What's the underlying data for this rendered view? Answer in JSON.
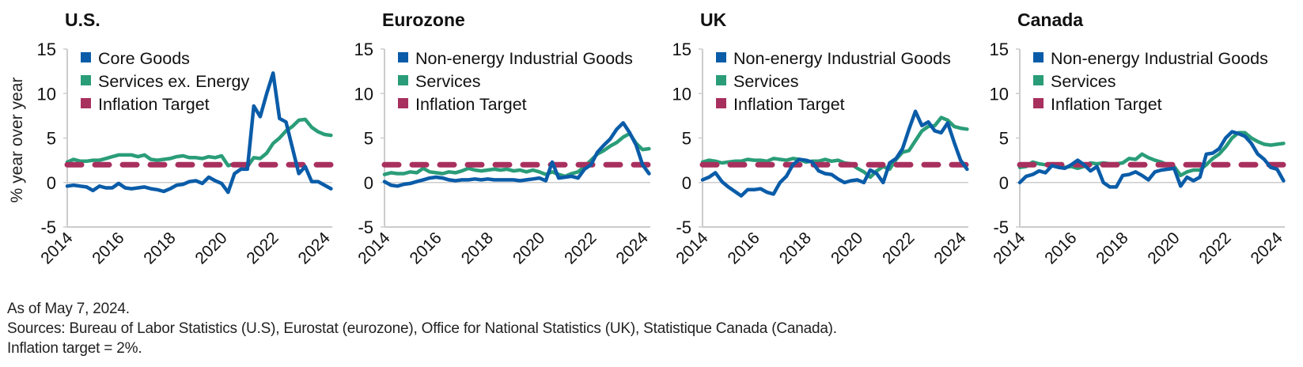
{
  "y_axis_label": "% year over year",
  "footer": {
    "as_of": "As of May 7, 2024.",
    "sources": "Sources: Bureau of Labor Statistics (U.S), Eurostat (eurozone), Office for National Statistics (UK), Statistique Canada (Canada).",
    "note": "Inflation target = 2%."
  },
  "colors": {
    "goods": "#0a5ca8",
    "services": "#2a9d78",
    "target": "#a8305e",
    "axis": "#cccccc",
    "text": "#111111"
  },
  "chart_data": [
    {
      "type": "line",
      "title": "U.S.",
      "xlabel": "",
      "ylabel": "% year over year",
      "x_ticks": [
        "2014",
        "2016",
        "2018",
        "2020",
        "2022",
        "2024"
      ],
      "y_ticks": [
        "15",
        "10",
        "5",
        "0",
        "-5"
      ],
      "xlim": [
        2014,
        2024.3
      ],
      "ylim": [
        -5,
        15
      ],
      "legend_position": "top-left",
      "x": [
        2014,
        2014.25,
        2014.5,
        2014.75,
        2015,
        2015.25,
        2015.5,
        2015.75,
        2016,
        2016.25,
        2016.5,
        2016.75,
        2017,
        2017.25,
        2017.5,
        2017.75,
        2018,
        2018.25,
        2018.5,
        2018.75,
        2019,
        2019.25,
        2019.5,
        2019.75,
        2020,
        2020.25,
        2020.5,
        2020.75,
        2021,
        2021.25,
        2021.5,
        2021.75,
        2022,
        2022.25,
        2022.5,
        2022.75,
        2023,
        2023.25,
        2023.5,
        2023.75,
        2024,
        2024.25
      ],
      "series": [
        {
          "name": "Core Goods",
          "values": [
            -0.4,
            -0.3,
            -0.4,
            -0.5,
            -0.9,
            -0.4,
            -0.6,
            -0.6,
            -0.1,
            -0.6,
            -0.7,
            -0.6,
            -0.5,
            -0.7,
            -0.8,
            -1.0,
            -0.7,
            -0.3,
            -0.2,
            0.1,
            0.2,
            -0.1,
            0.6,
            0.2,
            -0.1,
            -1.1,
            1.0,
            1.5,
            1.5,
            8.6,
            7.4,
            10.0,
            12.3,
            7.2,
            6.8,
            3.9,
            1.0,
            1.8,
            0.1,
            0.1,
            -0.3,
            -0.7
          ]
        },
        {
          "name": "Services ex. Energy",
          "values": [
            2.3,
            2.6,
            2.4,
            2.4,
            2.5,
            2.5,
            2.7,
            2.9,
            3.1,
            3.1,
            3.1,
            2.9,
            3.1,
            2.6,
            2.5,
            2.6,
            2.7,
            2.9,
            3.0,
            2.8,
            2.8,
            2.7,
            2.9,
            2.8,
            3.0,
            1.9,
            2.1,
            2.1,
            1.8,
            2.8,
            2.7,
            3.3,
            4.4,
            5.0,
            5.8,
            6.3,
            7.0,
            7.1,
            6.2,
            5.7,
            5.4,
            5.3
          ]
        },
        {
          "name": "Inflation Target",
          "values": [
            2,
            2,
            2,
            2,
            2,
            2,
            2,
            2,
            2,
            2,
            2,
            2,
            2,
            2,
            2,
            2,
            2,
            2,
            2,
            2,
            2,
            2,
            2,
            2,
            2,
            2,
            2,
            2,
            2,
            2,
            2,
            2,
            2,
            2,
            2,
            2,
            2,
            2,
            2,
            2,
            2,
            2
          ]
        }
      ]
    },
    {
      "type": "line",
      "title": "Eurozone",
      "xlabel": "",
      "ylabel": "",
      "x_ticks": [
        "2014",
        "2016",
        "2018",
        "2020",
        "2022",
        "2024"
      ],
      "y_ticks": [
        "15",
        "10",
        "5",
        "0",
        "-5"
      ],
      "xlim": [
        2014,
        2024.3
      ],
      "ylim": [
        -5,
        15
      ],
      "legend_position": "top-left",
      "x": [
        2014,
        2014.25,
        2014.5,
        2014.75,
        2015,
        2015.25,
        2015.5,
        2015.75,
        2016,
        2016.25,
        2016.5,
        2016.75,
        2017,
        2017.25,
        2017.5,
        2017.75,
        2018,
        2018.25,
        2018.5,
        2018.75,
        2019,
        2019.25,
        2019.5,
        2019.75,
        2020,
        2020.25,
        2020.5,
        2020.75,
        2021,
        2021.25,
        2021.5,
        2021.75,
        2022,
        2022.25,
        2022.5,
        2022.75,
        2023,
        2023.25,
        2023.5,
        2023.75,
        2024,
        2024.25
      ],
      "series": [
        {
          "name": "Non-energy Industrial Goods",
          "values": [
            0.1,
            -0.3,
            -0.4,
            -0.2,
            -0.1,
            0.1,
            0.3,
            0.5,
            0.6,
            0.5,
            0.3,
            0.2,
            0.3,
            0.3,
            0.4,
            0.3,
            0.4,
            0.3,
            0.3,
            0.3,
            0.3,
            0.2,
            0.3,
            0.4,
            0.5,
            0.2,
            2.3,
            0.5,
            0.6,
            0.7,
            0.5,
            1.5,
            2.0,
            3.4,
            4.2,
            4.9,
            6.0,
            6.7,
            5.6,
            4.2,
            2.0,
            1.0
          ]
        },
        {
          "name": "Services",
          "values": [
            0.9,
            1.1,
            1.0,
            1.0,
            1.2,
            1.1,
            1.6,
            1.2,
            1.1,
            1.0,
            1.2,
            1.1,
            1.3,
            1.6,
            1.4,
            1.3,
            1.4,
            1.5,
            1.4,
            1.5,
            1.3,
            1.4,
            1.2,
            1.4,
            1.2,
            0.9,
            1.2,
            0.9,
            0.7,
            1.0,
            1.2,
            1.8,
            2.5,
            3.2,
            3.6,
            4.1,
            4.5,
            5.1,
            5.5,
            4.4,
            3.7,
            3.8
          ]
        },
        {
          "name": "Inflation Target",
          "values": [
            2,
            2,
            2,
            2,
            2,
            2,
            2,
            2,
            2,
            2,
            2,
            2,
            2,
            2,
            2,
            2,
            2,
            2,
            2,
            2,
            2,
            2,
            2,
            2,
            2,
            2,
            2,
            2,
            2,
            2,
            2,
            2,
            2,
            2,
            2,
            2,
            2,
            2,
            2,
            2,
            2,
            2
          ]
        }
      ]
    },
    {
      "type": "line",
      "title": "UK",
      "xlabel": "",
      "ylabel": "",
      "x_ticks": [
        "2014",
        "2016",
        "2018",
        "2020",
        "2022",
        "2024"
      ],
      "y_ticks": [
        "15",
        "10",
        "5",
        "0",
        "-5"
      ],
      "xlim": [
        2014,
        2024.3
      ],
      "ylim": [
        -5,
        15
      ],
      "legend_position": "top-left",
      "x": [
        2014,
        2014.25,
        2014.5,
        2014.75,
        2015,
        2015.25,
        2015.5,
        2015.75,
        2016,
        2016.25,
        2016.5,
        2016.75,
        2017,
        2017.25,
        2017.5,
        2017.75,
        2018,
        2018.25,
        2018.5,
        2018.75,
        2019,
        2019.25,
        2019.5,
        2019.75,
        2020,
        2020.25,
        2020.5,
        2020.75,
        2021,
        2021.25,
        2021.5,
        2021.75,
        2022,
        2022.25,
        2022.5,
        2022.75,
        2023,
        2023.25,
        2023.5,
        2023.75,
        2024,
        2024.25
      ],
      "series": [
        {
          "name": "Non-energy Industrial Goods",
          "values": [
            0.3,
            0.6,
            1.1,
            0.1,
            -0.5,
            -1.0,
            -1.5,
            -0.8,
            -0.8,
            -0.7,
            -1.1,
            -1.3,
            0.0,
            0.7,
            2.0,
            2.6,
            2.5,
            2.3,
            1.3,
            1.0,
            0.9,
            0.4,
            0.0,
            0.2,
            0.3,
            0.0,
            1.4,
            1.0,
            0.0,
            2.2,
            2.7,
            3.8,
            6.0,
            8.0,
            6.4,
            6.8,
            5.8,
            5.6,
            6.7,
            4.5,
            2.5,
            1.5
          ]
        },
        {
          "name": "Services",
          "values": [
            2.3,
            2.5,
            2.4,
            2.2,
            2.3,
            2.4,
            2.4,
            2.6,
            2.5,
            2.5,
            2.4,
            2.7,
            2.6,
            2.5,
            2.7,
            2.6,
            2.3,
            2.4,
            2.4,
            2.6,
            2.4,
            2.5,
            2.2,
            2.1,
            1.6,
            1.2,
            0.6,
            1.3,
            1.8,
            1.5,
            2.6,
            3.4,
            3.6,
            4.7,
            5.8,
            6.3,
            6.4,
            7.3,
            7.0,
            6.3,
            6.1,
            6.0
          ]
        },
        {
          "name": "Inflation Target",
          "values": [
            2,
            2,
            2,
            2,
            2,
            2,
            2,
            2,
            2,
            2,
            2,
            2,
            2,
            2,
            2,
            2,
            2,
            2,
            2,
            2,
            2,
            2,
            2,
            2,
            2,
            2,
            2,
            2,
            2,
            2,
            2,
            2,
            2,
            2,
            2,
            2,
            2,
            2,
            2,
            2,
            2,
            2
          ]
        }
      ]
    },
    {
      "type": "line",
      "title": "Canada",
      "xlabel": "",
      "ylabel": "",
      "x_ticks": [
        "2014",
        "2016",
        "2018",
        "2020",
        "2022",
        "2024"
      ],
      "y_ticks": [
        "15",
        "10",
        "5",
        "0",
        "-5"
      ],
      "xlim": [
        2014,
        2024.3
      ],
      "ylim": [
        -5,
        15
      ],
      "legend_position": "top-left",
      "x": [
        2014,
        2014.25,
        2014.5,
        2014.75,
        2015,
        2015.25,
        2015.5,
        2015.75,
        2016,
        2016.25,
        2016.5,
        2016.75,
        2017,
        2017.25,
        2017.5,
        2017.75,
        2018,
        2018.25,
        2018.5,
        2018.75,
        2019,
        2019.25,
        2019.5,
        2019.75,
        2020,
        2020.25,
        2020.5,
        2020.75,
        2021,
        2021.25,
        2021.5,
        2021.75,
        2022,
        2022.25,
        2022.5,
        2022.75,
        2023,
        2023.25,
        2023.5,
        2023.75,
        2024,
        2024.25
      ],
      "series": [
        {
          "name": "Non-energy Industrial Goods",
          "values": [
            0.0,
            0.7,
            0.9,
            1.3,
            1.1,
            1.9,
            1.7,
            1.6,
            2.0,
            2.5,
            2.0,
            1.3,
            1.8,
            0.0,
            -0.5,
            -0.5,
            0.8,
            0.9,
            1.2,
            0.8,
            0.3,
            1.2,
            1.4,
            1.5,
            1.6,
            -0.4,
            0.6,
            0.2,
            0.6,
            3.2,
            3.3,
            3.8,
            5.0,
            5.7,
            5.5,
            5.2,
            4.4,
            3.2,
            2.6,
            1.7,
            1.5,
            0.2
          ]
        },
        {
          "name": "Services",
          "values": [
            1.7,
            1.8,
            2.3,
            2.1,
            2.0,
            2.1,
            1.8,
            1.7,
            1.8,
            1.6,
            1.8,
            2.2,
            2.1,
            2.2,
            2.1,
            2.1,
            2.2,
            2.7,
            2.6,
            3.2,
            2.8,
            2.5,
            2.3,
            2.0,
            1.8,
            0.8,
            1.2,
            1.4,
            1.4,
            2.0,
            2.7,
            3.2,
            4.0,
            5.0,
            5.6,
            5.6,
            5.0,
            4.6,
            4.3,
            4.2,
            4.3,
            4.4
          ]
        },
        {
          "name": "Inflation Target",
          "values": [
            2,
            2,
            2,
            2,
            2,
            2,
            2,
            2,
            2,
            2,
            2,
            2,
            2,
            2,
            2,
            2,
            2,
            2,
            2,
            2,
            2,
            2,
            2,
            2,
            2,
            2,
            2,
            2,
            2,
            2,
            2,
            2,
            2,
            2,
            2,
            2,
            2,
            2,
            2,
            2,
            2,
            2
          ]
        }
      ]
    }
  ]
}
